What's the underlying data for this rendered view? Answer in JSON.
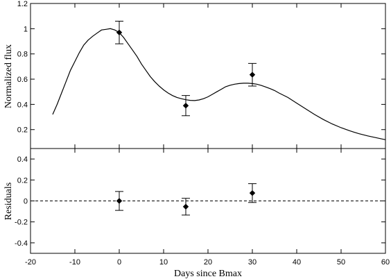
{
  "chart_data": [
    {
      "type": "line",
      "panel": "top",
      "ylabel": "Normalized flux",
      "xlim": [
        -20,
        60
      ],
      "ylim": [
        0.05,
        1.2
      ],
      "xticks": [
        -20,
        -10,
        0,
        10,
        20,
        30,
        40,
        50,
        60
      ],
      "yticks": [
        0.2,
        0.4,
        0.6,
        0.8,
        1,
        1.2
      ],
      "ytick_labels": [
        "0.2",
        "0.4",
        "0.6",
        "0.8",
        "1",
        "1.2"
      ],
      "series": [
        {
          "style": "solid-line",
          "x": [
            -15,
            -14,
            -13,
            -12,
            -11,
            -10,
            -9,
            -8,
            -7,
            -6,
            -5,
            -4,
            -3,
            -2,
            -1,
            0,
            1,
            2,
            3,
            4,
            5,
            6,
            7,
            8,
            9,
            10,
            11,
            12,
            13,
            14,
            15,
            16,
            17,
            18,
            19,
            20,
            21,
            22,
            23,
            24,
            25,
            26,
            27,
            28,
            29,
            30,
            31,
            32,
            33,
            34,
            35,
            36,
            38,
            40,
            42,
            44,
            46,
            48,
            50,
            52,
            54,
            56,
            58,
            60
          ],
          "y": [
            0.32,
            0.4,
            0.49,
            0.58,
            0.67,
            0.74,
            0.81,
            0.87,
            0.91,
            0.94,
            0.965,
            0.99,
            0.995,
            1.0,
            0.99,
            0.97,
            0.93,
            0.88,
            0.83,
            0.78,
            0.72,
            0.67,
            0.62,
            0.58,
            0.545,
            0.515,
            0.49,
            0.47,
            0.455,
            0.445,
            0.437,
            0.432,
            0.43,
            0.435,
            0.445,
            0.46,
            0.48,
            0.5,
            0.52,
            0.54,
            0.552,
            0.56,
            0.565,
            0.568,
            0.568,
            0.565,
            0.56,
            0.55,
            0.538,
            0.525,
            0.51,
            0.49,
            0.455,
            0.41,
            0.365,
            0.32,
            0.28,
            0.245,
            0.215,
            0.19,
            0.168,
            0.15,
            0.135,
            0.12
          ]
        },
        {
          "style": "diamond-errorbar",
          "x": [
            0,
            15,
            30
          ],
          "y": [
            0.97,
            0.39,
            0.635
          ],
          "yerr": [
            0.09,
            0.08,
            0.09
          ]
        }
      ]
    },
    {
      "type": "scatter",
      "panel": "bottom",
      "xlabel": "Days since Bmax",
      "ylabel": "Residuals",
      "xlim": [
        -20,
        60
      ],
      "ylim": [
        -0.5,
        0.5
      ],
      "xticks": [
        -20,
        -10,
        0,
        10,
        20,
        30,
        40,
        50,
        60
      ],
      "xtick_labels": [
        "-20",
        "-10",
        "0",
        "10",
        "20",
        "30",
        "40",
        "50",
        "60"
      ],
      "yticks": [
        -0.4,
        -0.2,
        0,
        0.2,
        0.4
      ],
      "ytick_labels": [
        "-0.4",
        "-0.2",
        "0",
        "0.2",
        "0.4"
      ],
      "reference_line": {
        "y": 0,
        "style": "dashed"
      },
      "series": [
        {
          "style": "diamond-errorbar",
          "x": [
            0,
            15,
            30
          ],
          "y": [
            0.0,
            -0.055,
            0.075
          ],
          "yerr": [
            0.09,
            0.08,
            0.09
          ]
        }
      ]
    }
  ]
}
